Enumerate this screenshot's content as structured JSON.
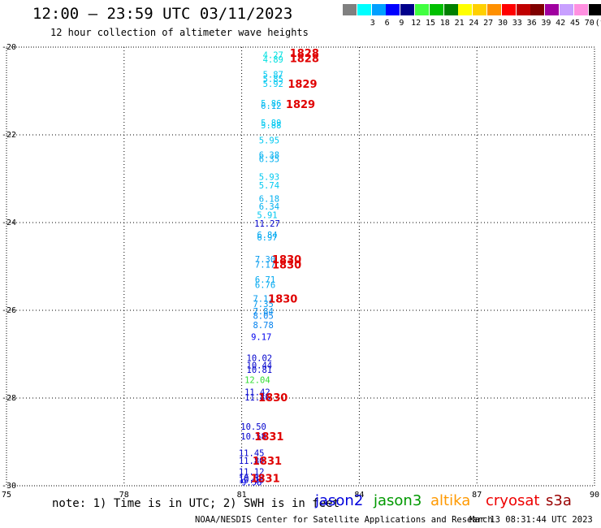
{
  "header": {
    "title": "12:00 – 23:59 UTC 03/11/2023",
    "subtitle": "12 hour collection of altimeter wave heights"
  },
  "legend": {
    "items": [
      {
        "label": "",
        "color": "#808080"
      },
      {
        "label": "3",
        "color": "#00ffff"
      },
      {
        "label": "6",
        "color": "#00a0ff"
      },
      {
        "label": "9",
        "color": "#0000ff"
      },
      {
        "label": "12",
        "color": "#00008b"
      },
      {
        "label": "15",
        "color": "#40ff40"
      },
      {
        "label": "18",
        "color": "#00c000"
      },
      {
        "label": "21",
        "color": "#008000"
      },
      {
        "label": "24",
        "color": "#ffff00"
      },
      {
        "label": "27",
        "color": "#ffd000"
      },
      {
        "label": "30",
        "color": "#ff9000"
      },
      {
        "label": "33",
        "color": "#ff0000"
      },
      {
        "label": "36",
        "color": "#c00000"
      },
      {
        "label": "39",
        "color": "#800000"
      },
      {
        "label": "42",
        "color": "#a000a0"
      },
      {
        "label": "45",
        "color": "#c8a0ff"
      },
      {
        "label": "70",
        "color": "#ff90e0"
      },
      {
        "label": "(ft)",
        "color": "#000000"
      }
    ]
  },
  "footer": {
    "note": "note: 1) Time is in UTC; 2) SWH is in feet",
    "satellites": [
      {
        "name": "jason2",
        "color": "#0000dd"
      },
      {
        "name": "jason3",
        "color": "#009900"
      },
      {
        "name": "altika",
        "color": "#ff9900"
      },
      {
        "name": "cryosat",
        "color": "#ee0000"
      },
      {
        "name": "s3a",
        "color": "#990000"
      }
    ],
    "credit": "NOAA/NESDIS Center for Satellite Applications and Research",
    "stamp": "Mar 13 08:31:44 UTC 2023"
  },
  "chart_data": {
    "type": "scatter",
    "xlim": [
      75,
      90
    ],
    "ylim": [
      -30,
      -20
    ],
    "x_ticks": [
      75,
      78,
      81,
      84,
      87,
      90
    ],
    "y_ticks": [
      -20,
      -22,
      -24,
      -26,
      -28,
      -30
    ],
    "x_tick_labels": [
      "75",
      "78",
      "81",
      "84",
      "87",
      "90"
    ],
    "y_tick_labels": [
      "-20",
      "-22",
      "-24",
      "-26",
      "-28",
      "-30"
    ],
    "grid": true,
    "observations": [
      {
        "lat": -20.18,
        "lon": 81.8,
        "label": "4.27",
        "color": "#00e0e0"
      },
      {
        "lat": -20.28,
        "lon": 81.8,
        "label": "4.89",
        "color": "#00e0e0"
      },
      {
        "lat": -20.62,
        "lon": 81.8,
        "label": "5.87",
        "color": "#00c8f0"
      },
      {
        "lat": -20.72,
        "lon": 81.8,
        "label": "5.85",
        "color": "#00c8f0"
      },
      {
        "lat": -20.83,
        "lon": 81.8,
        "label": "5.92",
        "color": "#00c8f0"
      },
      {
        "lat": -21.28,
        "lon": 81.75,
        "label": "5.86",
        "color": "#00c8f0"
      },
      {
        "lat": -21.33,
        "lon": 81.75,
        "label": "6.12",
        "color": "#00b0f0"
      },
      {
        "lat": -21.72,
        "lon": 81.75,
        "label": "5.89",
        "color": "#00c8f0"
      },
      {
        "lat": -21.78,
        "lon": 81.75,
        "label": "5.88",
        "color": "#00c8f0"
      },
      {
        "lat": -22.12,
        "lon": 81.7,
        "label": "5.95",
        "color": "#00c8f0"
      },
      {
        "lat": -22.45,
        "lon": 81.7,
        "label": "6.38",
        "color": "#00b0f0"
      },
      {
        "lat": -22.55,
        "lon": 81.7,
        "label": "6.35",
        "color": "#00b0f0"
      },
      {
        "lat": -22.95,
        "lon": 81.7,
        "label": "5.93",
        "color": "#00c8f0"
      },
      {
        "lat": -23.15,
        "lon": 81.7,
        "label": "5.74",
        "color": "#00c8f0"
      },
      {
        "lat": -23.45,
        "lon": 81.7,
        "label": "6.18",
        "color": "#00b0f0"
      },
      {
        "lat": -23.63,
        "lon": 81.7,
        "label": "6.34",
        "color": "#00b0f0"
      },
      {
        "lat": -23.82,
        "lon": 81.65,
        "label": "5.91",
        "color": "#00c8f0"
      },
      {
        "lat": -24.02,
        "lon": 81.65,
        "label": "11.27",
        "color": "#0000cc"
      },
      {
        "lat": -24.28,
        "lon": 81.65,
        "label": "6.84",
        "color": "#00a8f0"
      },
      {
        "lat": -24.33,
        "lon": 81.65,
        "label": "6.97",
        "color": "#00a8f0"
      },
      {
        "lat": -24.83,
        "lon": 81.6,
        "label": "7.30",
        "color": "#0099ee"
      },
      {
        "lat": -24.95,
        "lon": 81.6,
        "label": "7.17",
        "color": "#0099ee"
      },
      {
        "lat": -25.3,
        "lon": 81.6,
        "label": "6.71",
        "color": "#00a8f0"
      },
      {
        "lat": -25.42,
        "lon": 81.6,
        "label": "6.76",
        "color": "#00a8f0"
      },
      {
        "lat": -25.73,
        "lon": 81.55,
        "label": "7.17",
        "color": "#0099ee"
      },
      {
        "lat": -25.85,
        "lon": 81.55,
        "label": "7.35",
        "color": "#0099ee"
      },
      {
        "lat": -26.02,
        "lon": 81.55,
        "label": "7.84",
        "color": "#0090ee"
      },
      {
        "lat": -26.12,
        "lon": 81.55,
        "label": "8.05",
        "color": "#0080ee"
      },
      {
        "lat": -26.33,
        "lon": 81.55,
        "label": "8.78",
        "color": "#0080ee"
      },
      {
        "lat": -26.6,
        "lon": 81.5,
        "label": "9.17",
        "color": "#0000ee"
      },
      {
        "lat": -27.08,
        "lon": 81.45,
        "label": "10.02",
        "color": "#0000cc"
      },
      {
        "lat": -27.25,
        "lon": 81.45,
        "label": "10.44",
        "color": "#0000cc"
      },
      {
        "lat": -27.35,
        "lon": 81.45,
        "label": "10.81",
        "color": "#0000cc"
      },
      {
        "lat": -27.58,
        "lon": 81.4,
        "label": "12.04",
        "color": "#33dd33"
      },
      {
        "lat": -27.86,
        "lon": 81.4,
        "label": "11.42",
        "color": "#0000cc"
      },
      {
        "lat": -27.98,
        "lon": 81.4,
        "label": "11.86",
        "color": "#0000cc"
      },
      {
        "lat": -28.65,
        "lon": 81.3,
        "label": "10.50",
        "color": "#0000cc"
      },
      {
        "lat": -28.87,
        "lon": 81.3,
        "label": "10.58",
        "color": "#0000cc"
      },
      {
        "lat": -29.25,
        "lon": 81.25,
        "label": "11.45",
        "color": "#0000cc"
      },
      {
        "lat": -29.43,
        "lon": 81.25,
        "label": "11.80",
        "color": "#0000cc"
      },
      {
        "lat": -29.68,
        "lon": 81.25,
        "label": "11.12",
        "color": "#0000cc"
      },
      {
        "lat": -29.82,
        "lon": 81.25,
        "label": "10.32",
        "color": "#0000cc"
      },
      {
        "lat": -29.86,
        "lon": 81.25,
        "label": "10.16",
        "color": "#0000cc"
      },
      {
        "lat": -29.92,
        "lon": 81.25,
        "label": "9.58",
        "color": "#0000ee"
      }
    ],
    "pass_labels": [
      {
        "lat": -20.13,
        "lon": 82.6,
        "label": "1828"
      },
      {
        "lat": -20.25,
        "lon": 82.6,
        "label": "1828"
      },
      {
        "lat": -20.83,
        "lon": 82.55,
        "label": "1829"
      },
      {
        "lat": -21.3,
        "lon": 82.5,
        "label": "1829"
      },
      {
        "lat": -24.83,
        "lon": 82.15,
        "label": "1830"
      },
      {
        "lat": -24.95,
        "lon": 82.15,
        "label": "1830"
      },
      {
        "lat": -25.73,
        "lon": 82.05,
        "label": "1830"
      },
      {
        "lat": -27.98,
        "lon": 81.8,
        "label": "1830"
      },
      {
        "lat": -28.87,
        "lon": 81.7,
        "label": "1831"
      },
      {
        "lat": -29.43,
        "lon": 81.65,
        "label": "1831"
      },
      {
        "lat": -29.82,
        "lon": 81.6,
        "label": "1831"
      }
    ]
  }
}
